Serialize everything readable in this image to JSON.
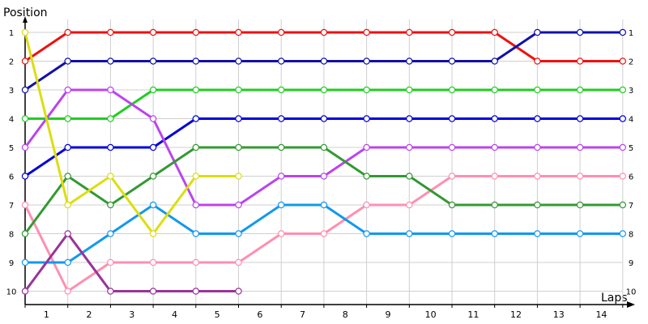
{
  "chart_data": {
    "type": "line",
    "ylabel": "Position",
    "xlabel": "Laps",
    "x_tick_labels": [
      "1",
      "2",
      "3",
      "4",
      "5",
      "6",
      "7",
      "8",
      "9",
      "10",
      "11",
      "12",
      "13",
      "14"
    ],
    "y_tick_labels": [
      "1",
      "2",
      "3",
      "4",
      "5",
      "6",
      "7",
      "8",
      "9",
      "10"
    ],
    "ylim": [
      1,
      10
    ],
    "y_inverted": true,
    "grid": true,
    "x_points": [
      0,
      1,
      2,
      3,
      4,
      5,
      6,
      7,
      8,
      9,
      10,
      11,
      12,
      13,
      14
    ],
    "series": [
      {
        "color": "#ee1111",
        "values": [
          2,
          1,
          1,
          1,
          1,
          1,
          1,
          1,
          1,
          1,
          1,
          1,
          2,
          2,
          2
        ]
      },
      {
        "color": "#1111aa",
        "values": [
          3,
          2,
          2,
          2,
          2,
          2,
          2,
          2,
          2,
          2,
          2,
          2,
          1,
          1,
          1
        ]
      },
      {
        "color": "#22cc22",
        "values": [
          4,
          4,
          4,
          3,
          3,
          3,
          3,
          3,
          3,
          3,
          3,
          3,
          3,
          3,
          3
        ]
      },
      {
        "color": "#0000dd",
        "values": [
          6,
          5,
          5,
          5,
          4,
          4,
          4,
          4,
          4,
          4,
          4,
          4,
          4,
          4,
          4
        ]
      },
      {
        "color": "#bb44ee",
        "values": [
          5,
          3,
          3,
          4,
          7,
          7,
          6,
          6,
          5,
          5,
          5,
          5,
          5,
          5,
          5
        ]
      },
      {
        "color": "#ff8fb0",
        "values": [
          7,
          10,
          9,
          9,
          9,
          9,
          8,
          8,
          7,
          7,
          6,
          6,
          6,
          6,
          6
        ]
      },
      {
        "color": "#339933",
        "values": [
          8,
          6,
          7,
          6,
          5,
          5,
          5,
          5,
          6,
          6,
          7,
          7,
          7,
          7,
          7
        ]
      },
      {
        "color": "#1199ee",
        "values": [
          9,
          9,
          8,
          7,
          8,
          8,
          7,
          7,
          8,
          8,
          8,
          8,
          8,
          8,
          8
        ]
      },
      {
        "color": "#dddd11",
        "values": [
          1,
          7,
          6,
          8,
          6,
          6,
          null,
          null,
          null,
          null,
          null,
          null,
          null,
          null,
          null
        ]
      },
      {
        "color": "#993399",
        "values": [
          10,
          8,
          10,
          10,
          10,
          10,
          null,
          null,
          null,
          null,
          null,
          null,
          null,
          null,
          null
        ]
      }
    ]
  }
}
